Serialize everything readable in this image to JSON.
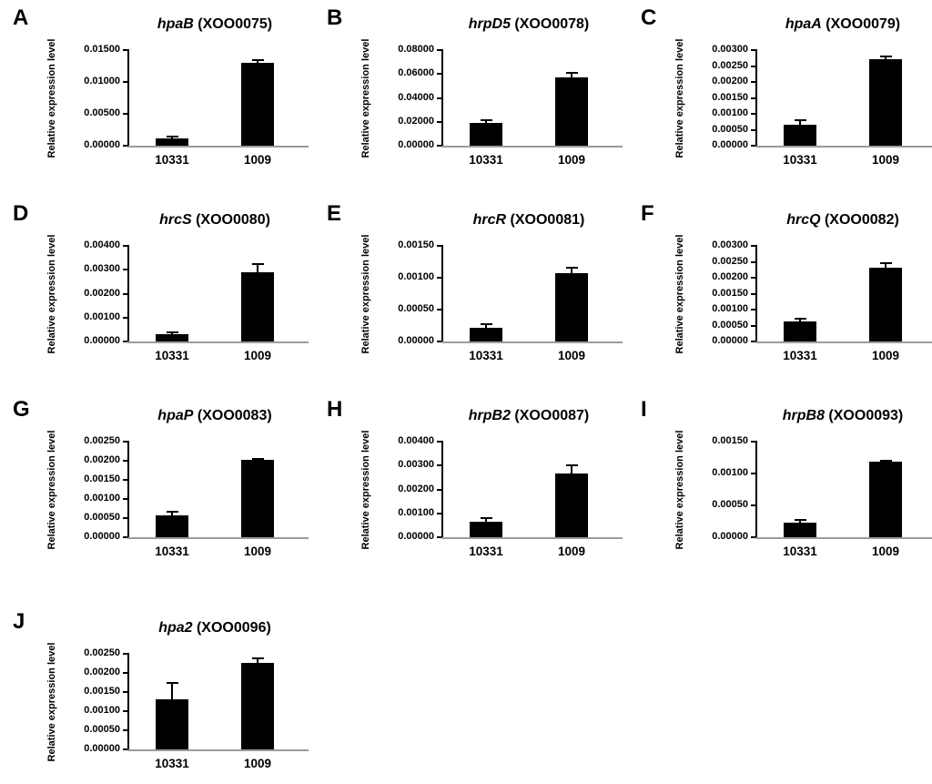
{
  "figure": {
    "ylabel": "Relative expression level",
    "colors": {
      "bar": "#000000",
      "axis": "#000000",
      "baseline": "#9b9b9b",
      "text": "#000000"
    }
  },
  "chart_data": [
    {
      "type": "bar",
      "panel": "A",
      "title": "hpaB (XOO0075)",
      "title_gene": "hpaB",
      "title_rest": " (XOO0075)",
      "ylabel": "Relative expression level",
      "categories": [
        "10331",
        "1009"
      ],
      "values": [
        0.0012,
        0.013
      ],
      "errors": [
        0.0003,
        0.0004
      ],
      "ylim": [
        0,
        0.015
      ],
      "yticks": [
        "0.00000",
        "0.00500",
        "0.01000",
        "0.01500"
      ]
    },
    {
      "type": "bar",
      "panel": "B",
      "title": "hrpD5 (XOO0078)",
      "title_gene": "hrpD5",
      "title_rest": " (XOO0078)",
      "ylabel": "Relative expression level",
      "categories": [
        "10331",
        "1009"
      ],
      "values": [
        0.019,
        0.057
      ],
      "errors": [
        0.0025,
        0.004
      ],
      "ylim": [
        0,
        0.08
      ],
      "yticks": [
        "0.00000",
        "0.02000",
        "0.04000",
        "0.06000",
        "0.08000"
      ]
    },
    {
      "type": "bar",
      "panel": "C",
      "title": "hpaA (XOO0079)",
      "title_gene": "hpaA",
      "title_rest": " (XOO0079)",
      "ylabel": "Relative expression level",
      "categories": [
        "10331",
        "1009"
      ],
      "values": [
        0.00065,
        0.00272
      ],
      "errors": [
        0.00013,
        8e-05
      ],
      "ylim": [
        0,
        0.003
      ],
      "yticks": [
        "0.00000",
        "0.00050",
        "0.00100",
        "0.00150",
        "0.00200",
        "0.00250",
        "0.00300"
      ]
    },
    {
      "type": "bar",
      "panel": "D",
      "title": "hrcS (XOO0080)",
      "title_gene": "hrcS",
      "title_rest": " (XOO0080)",
      "ylabel": "Relative expression level",
      "categories": [
        "10331",
        "1009"
      ],
      "values": [
        0.0003,
        0.00288
      ],
      "errors": [
        8e-05,
        0.00033
      ],
      "ylim": [
        0,
        0.004
      ],
      "yticks": [
        "0.00000",
        "0.00100",
        "0.00200",
        "0.00300",
        "0.00400"
      ]
    },
    {
      "type": "bar",
      "panel": "E",
      "title": "hrcR (XOO0081)",
      "title_gene": "hrcR",
      "title_rest": " (XOO0081)",
      "ylabel": "Relative expression level",
      "categories": [
        "10331",
        "1009"
      ],
      "values": [
        0.00021,
        0.00107
      ],
      "errors": [
        5e-05,
        9e-05
      ],
      "ylim": [
        0,
        0.0015
      ],
      "yticks": [
        "0.00000",
        "0.00050",
        "0.00100",
        "0.00150"
      ]
    },
    {
      "type": "bar",
      "panel": "F",
      "title": "hrcQ (XOO0082)",
      "title_gene": "hrcQ",
      "title_rest": " (XOO0082)",
      "ylabel": "Relative expression level",
      "categories": [
        "10331",
        "1009"
      ],
      "values": [
        0.00064,
        0.00232
      ],
      "errors": [
        8e-05,
        0.00014
      ],
      "ylim": [
        0,
        0.003
      ],
      "yticks": [
        "0.00000",
        "0.00050",
        "0.00100",
        "0.00150",
        "0.00200",
        "0.00250",
        "0.00300"
      ]
    },
    {
      "type": "bar",
      "panel": "G",
      "title": "hpaP (XOO0083)",
      "title_gene": "hpaP",
      "title_rest": " (XOO0083)",
      "ylabel": "Relative expression level",
      "categories": [
        "10331",
        "1009"
      ],
      "values": [
        0.00057,
        0.00203
      ],
      "errors": [
        9e-05,
        3e-05
      ],
      "ylim": [
        0,
        0.0025
      ],
      "yticks": [
        "0.00000",
        "0.00050",
        "0.00100",
        "0.00150",
        "0.00200",
        "0.00250"
      ]
    },
    {
      "type": "bar",
      "panel": "H",
      "title": "hrpB2 (XOO0087)",
      "title_gene": "hrpB2",
      "title_rest": " (XOO0087)",
      "ylabel": "Relative expression level",
      "categories": [
        "10331",
        "1009"
      ],
      "values": [
        0.00065,
        0.00265
      ],
      "errors": [
        0.00017,
        0.00035
      ],
      "ylim": [
        0,
        0.004
      ],
      "yticks": [
        "0.00000",
        "0.00100",
        "0.00200",
        "0.00300",
        "0.00400"
      ]
    },
    {
      "type": "bar",
      "panel": "I",
      "title": "hrpB8 (XOO0093)",
      "title_gene": "hrpB8",
      "title_rest": " (XOO0093)",
      "ylabel": "Relative expression level",
      "categories": [
        "10331",
        "1009"
      ],
      "values": [
        0.00023,
        0.00119
      ],
      "errors": [
        4e-05,
        2e-05
      ],
      "ylim": [
        0,
        0.0015
      ],
      "yticks": [
        "0.00000",
        "0.00050",
        "0.00100",
        "0.00150"
      ]
    },
    {
      "type": "bar",
      "panel": "J",
      "title": "hpa2 (XOO0096)",
      "title_gene": "hpa2",
      "title_rest": " (XOO0096)",
      "ylabel": "Relative expression level",
      "categories": [
        "10331",
        "1009"
      ],
      "values": [
        0.00132,
        0.00227
      ],
      "errors": [
        0.00043,
        0.00012
      ],
      "ylim": [
        0,
        0.0025
      ],
      "yticks": [
        "0.00000",
        "0.00050",
        "0.00100",
        "0.00150",
        "0.00200",
        "0.00250"
      ]
    }
  ]
}
